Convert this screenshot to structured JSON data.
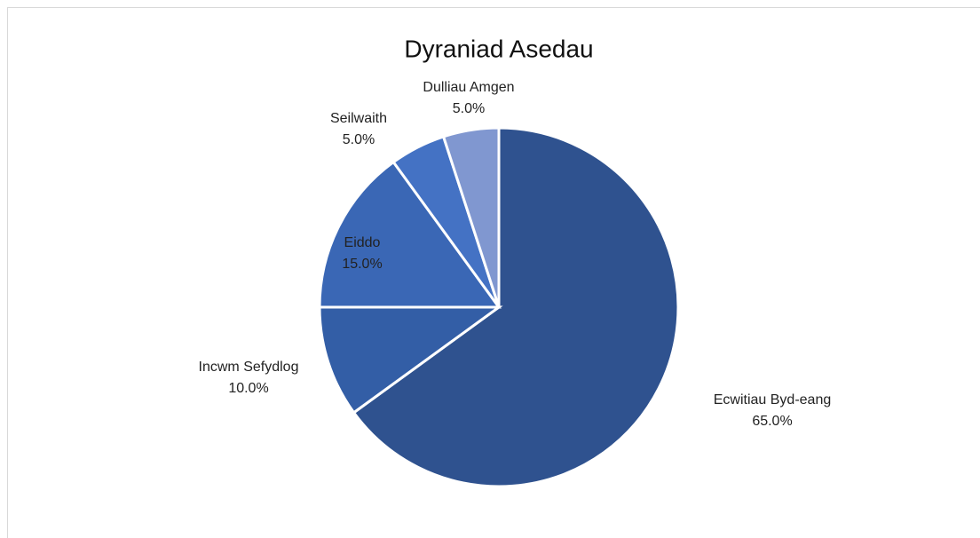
{
  "chart_data": {
    "type": "pie",
    "title": "Dyraniad Asedau",
    "categories": [
      "Ecwitiau Byd-eang",
      "Incwm Sefydlog",
      "Eiddo",
      "Seilwaith",
      "Dulliau Amgen"
    ],
    "values": [
      65,
      10,
      15,
      5,
      5
    ],
    "value_labels": [
      "65.0%",
      "10.0%",
      "15.0%",
      "5.0%",
      "5.0%"
    ],
    "colors": [
      "#2f528f",
      "#335ea6",
      "#3a67b5",
      "#4472c4",
      "#8097d0"
    ]
  }
}
